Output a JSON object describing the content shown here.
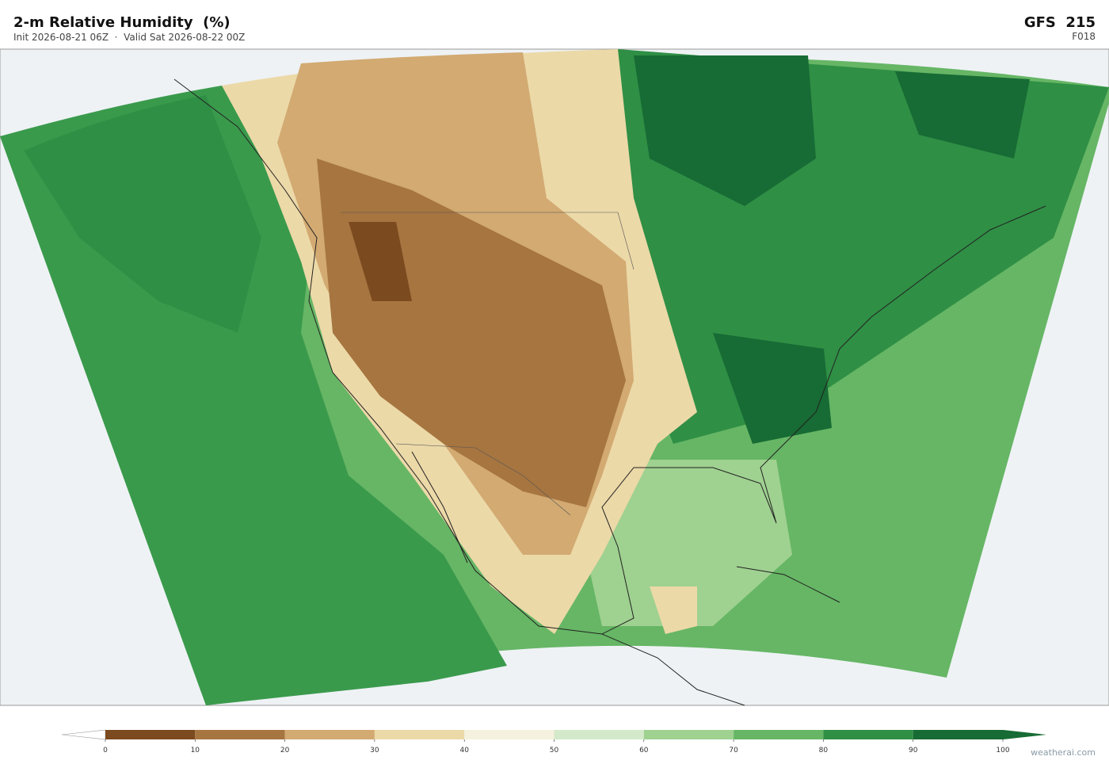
{
  "header": {
    "title": "2-m Relative Humidity  (%)",
    "subtitle": "Init 2026-08-21 06Z  ·  Valid Sat 2026-08-22 00Z",
    "model": "GFS  215",
    "forecast_hour": "F018"
  },
  "colorbar": {
    "ticks": [
      0,
      10,
      20,
      30,
      40,
      50,
      60,
      70,
      80,
      90,
      100
    ],
    "colors": [
      "#7b4a1f",
      "#a67540",
      "#d2aa72",
      "#ecd9a8",
      "#f4f1de",
      "#d3e9c9",
      "#9fd190",
      "#66b665",
      "#2f8f45",
      "#176b34"
    ],
    "under_color": "#ffffff",
    "over_color": "#176b34"
  },
  "credit": "weatherai.com"
}
